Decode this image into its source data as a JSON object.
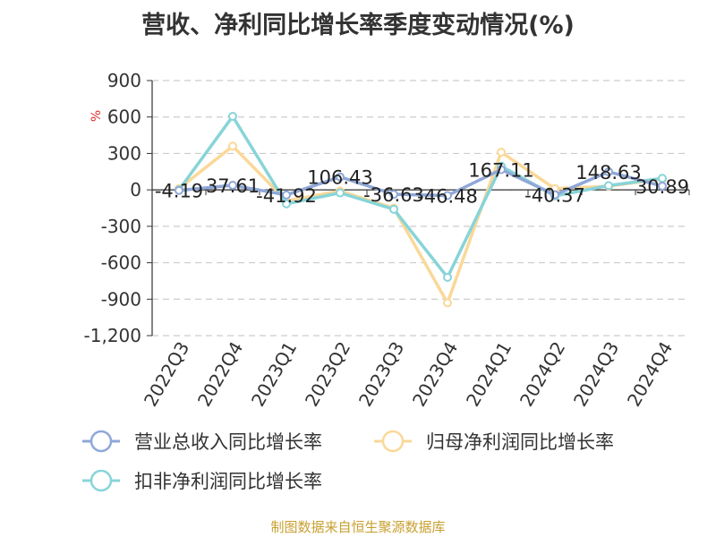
{
  "title": "营收、净利同比增长率季度变动情况(%)",
  "source": "制图数据来自恒生聚源数据库",
  "chart_data": {
    "type": "line",
    "title": "营收、净利同比增长率季度变动情况(%)",
    "ylabel": "%",
    "ylim": [
      -1200,
      900
    ],
    "yticks": [
      900,
      600,
      300,
      0,
      -300,
      -600,
      -900,
      -1200
    ],
    "ytick_labels": [
      "900",
      "600",
      "300",
      "0",
      "-300",
      "-600",
      "-900",
      "-1,200"
    ],
    "categories": [
      "2022Q3",
      "2022Q4",
      "2023Q1",
      "2023Q2",
      "2023Q3",
      "2023Q4",
      "2024Q1",
      "2024Q2",
      "2024Q3",
      "2024Q4"
    ],
    "grid": true,
    "legend_position": "bottom",
    "series": [
      {
        "name": "营业总收入同比增长率",
        "color": "#8fa8d8",
        "values": [
          -4.19,
          37.61,
          -41.92,
          106.43,
          -36.63,
          -46.48,
          167.11,
          -40.37,
          148.63,
          30.89
        ],
        "labels": [
          "-4.19",
          "37.61",
          "-41.92",
          "106.43",
          "-36.63",
          "-46.48",
          "167.11",
          "-40.37",
          "148.63",
          "30.89"
        ]
      },
      {
        "name": "归母净利润同比增长率",
        "color": "#fad898",
        "values": [
          10,
          360,
          -90,
          -10,
          -150,
          -930,
          310,
          10,
          30,
          90
        ]
      },
      {
        "name": "扣非净利润同比增长率",
        "color": "#88d4d8",
        "values": [
          0,
          605,
          -115,
          -25,
          -160,
          -720,
          195,
          -50,
          35,
          95
        ]
      }
    ]
  }
}
